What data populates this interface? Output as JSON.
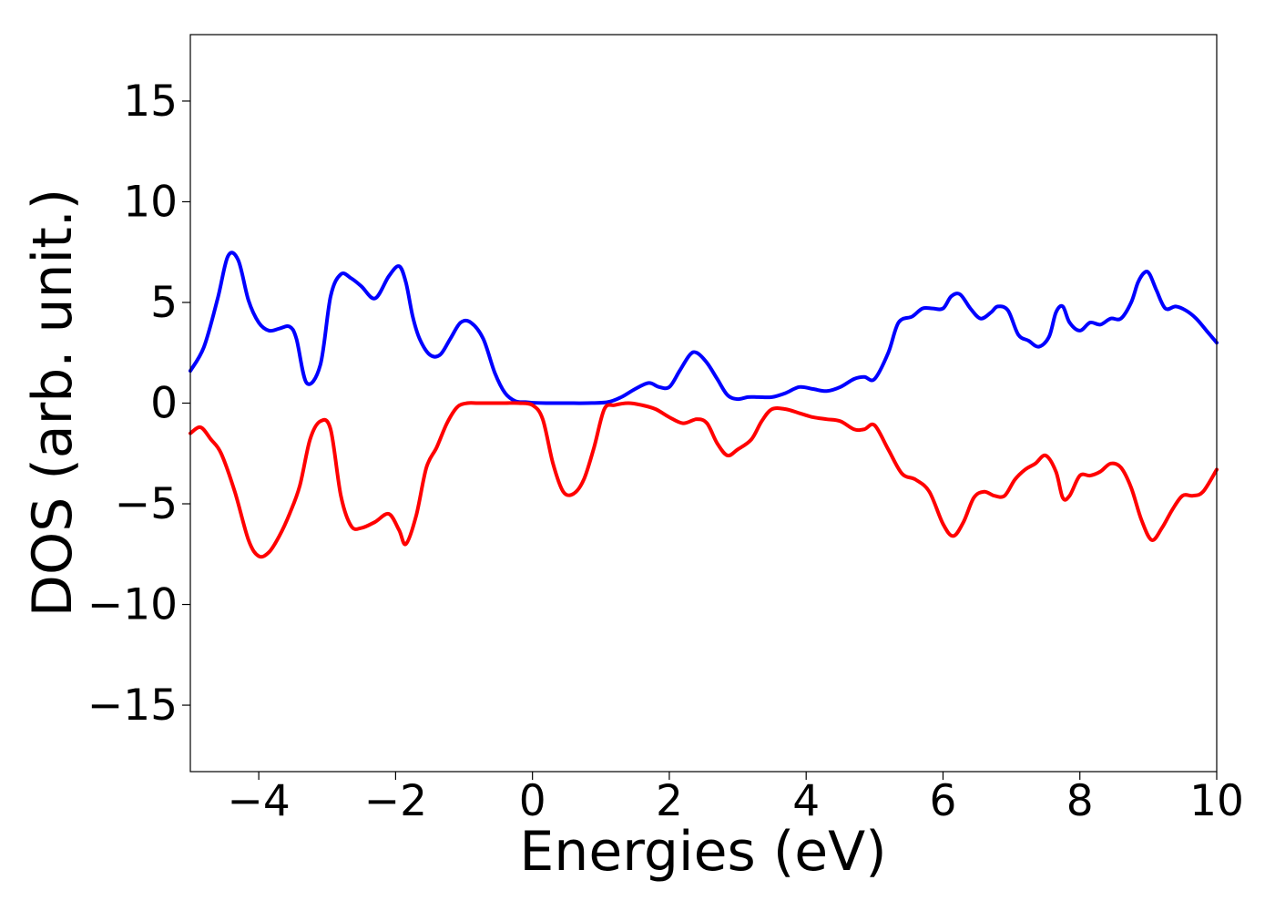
{
  "chart_data": {
    "type": "line",
    "title": "",
    "xlabel": "Energies (eV)",
    "ylabel": "DOS (arb. unit.)",
    "xlim": [
      -5,
      10
    ],
    "ylim": [
      -18.3,
      18.3
    ],
    "xticks": [
      -4,
      -2,
      0,
      2,
      4,
      6,
      8,
      10
    ],
    "xtick_labels": [
      "−4",
      "−2",
      "0",
      "2",
      "4",
      "6",
      "8",
      "10"
    ],
    "yticks": [
      15,
      10,
      5,
      0,
      -5,
      -10,
      -15
    ],
    "ytick_labels": [
      "15",
      "10",
      "5",
      "0",
      "−5",
      "−10",
      "−15"
    ],
    "grid": false,
    "series": [
      {
        "color": "#0000ff",
        "x": [
          -5.0,
          -4.8,
          -4.6,
          -4.45,
          -4.3,
          -4.15,
          -4.0,
          -3.85,
          -3.7,
          -3.55,
          -3.45,
          -3.3,
          -3.1,
          -2.95,
          -2.8,
          -2.65,
          -2.5,
          -2.3,
          -2.1,
          -1.95,
          -1.85,
          -1.75,
          -1.65,
          -1.5,
          -1.35,
          -1.2,
          -1.05,
          -0.9,
          -0.72,
          -0.55,
          -0.4,
          -0.25,
          -0.1,
          0.0,
          0.2,
          0.5,
          0.8,
          1.1,
          1.3,
          1.5,
          1.7,
          1.85,
          2.0,
          2.15,
          2.3,
          2.4,
          2.55,
          2.7,
          2.85,
          3.0,
          3.15,
          3.3,
          3.5,
          3.7,
          3.9,
          4.1,
          4.3,
          4.5,
          4.7,
          4.85,
          5.0,
          5.2,
          5.35,
          5.55,
          5.7,
          5.85,
          6.0,
          6.12,
          6.25,
          6.4,
          6.55,
          6.7,
          6.8,
          6.95,
          7.1,
          7.25,
          7.4,
          7.55,
          7.65,
          7.75,
          7.85,
          8.0,
          8.15,
          8.3,
          8.45,
          8.6,
          8.75,
          8.85,
          8.95,
          9.02,
          9.12,
          9.25,
          9.4,
          9.55,
          9.7,
          9.85,
          10.0
        ],
        "y": [
          1.6,
          2.8,
          5.2,
          7.3,
          7.1,
          5.1,
          4.0,
          3.6,
          3.7,
          3.8,
          3.2,
          1.0,
          1.9,
          5.3,
          6.4,
          6.2,
          5.8,
          5.2,
          6.3,
          6.8,
          6.0,
          4.3,
          3.2,
          2.4,
          2.4,
          3.2,
          4.0,
          4.0,
          3.2,
          1.5,
          0.5,
          0.1,
          0.05,
          0.02,
          0.0,
          0.0,
          0.0,
          0.05,
          0.3,
          0.7,
          1.0,
          0.8,
          0.8,
          1.6,
          2.4,
          2.5,
          2.0,
          1.2,
          0.4,
          0.2,
          0.3,
          0.3,
          0.3,
          0.5,
          0.8,
          0.7,
          0.6,
          0.8,
          1.2,
          1.3,
          1.2,
          2.5,
          4.0,
          4.3,
          4.7,
          4.7,
          4.7,
          5.3,
          5.4,
          4.7,
          4.2,
          4.5,
          4.8,
          4.6,
          3.4,
          3.1,
          2.8,
          3.3,
          4.5,
          4.8,
          4.0,
          3.6,
          4.0,
          3.9,
          4.2,
          4.2,
          5.0,
          6.0,
          6.5,
          6.4,
          5.6,
          4.7,
          4.8,
          4.6,
          4.2,
          3.6,
          3.0
        ]
      },
      {
        "color": "#ff0000",
        "x": [
          -5.0,
          -4.85,
          -4.7,
          -4.55,
          -4.35,
          -4.15,
          -4.0,
          -3.85,
          -3.7,
          -3.55,
          -3.4,
          -3.25,
          -3.1,
          -2.95,
          -2.8,
          -2.65,
          -2.5,
          -2.3,
          -2.1,
          -1.95,
          -1.85,
          -1.7,
          -1.55,
          -1.4,
          -1.25,
          -1.1,
          -0.95,
          -0.8,
          -0.6,
          -0.4,
          -0.2,
          0.0,
          0.15,
          0.3,
          0.45,
          0.6,
          0.75,
          0.9,
          1.05,
          1.2,
          1.4,
          1.6,
          1.8,
          2.0,
          2.2,
          2.4,
          2.55,
          2.7,
          2.85,
          3.0,
          3.2,
          3.35,
          3.5,
          3.7,
          3.9,
          4.1,
          4.3,
          4.5,
          4.7,
          4.85,
          5.0,
          5.2,
          5.4,
          5.6,
          5.8,
          6.0,
          6.15,
          6.3,
          6.45,
          6.6,
          6.75,
          6.9,
          7.05,
          7.2,
          7.35,
          7.5,
          7.65,
          7.75,
          7.85,
          8.0,
          8.15,
          8.3,
          8.45,
          8.6,
          8.75,
          8.9,
          9.05,
          9.2,
          9.35,
          9.5,
          9.65,
          9.8,
          10.0
        ],
        "y": [
          -1.5,
          -1.2,
          -1.8,
          -2.5,
          -4.4,
          -6.8,
          -7.6,
          -7.4,
          -6.6,
          -5.5,
          -4.1,
          -1.8,
          -0.9,
          -1.3,
          -4.6,
          -6.1,
          -6.2,
          -5.9,
          -5.5,
          -6.3,
          -7.0,
          -5.6,
          -3.2,
          -2.2,
          -1.0,
          -0.2,
          0.0,
          0.0,
          0.0,
          0.0,
          0.0,
          -0.1,
          -0.8,
          -3.0,
          -4.4,
          -4.5,
          -3.8,
          -2.2,
          -0.3,
          -0.1,
          0.0,
          -0.1,
          -0.3,
          -0.7,
          -1.0,
          -0.8,
          -1.0,
          -2.0,
          -2.6,
          -2.3,
          -1.8,
          -0.9,
          -0.3,
          -0.3,
          -0.5,
          -0.7,
          -0.8,
          -0.9,
          -1.3,
          -1.3,
          -1.1,
          -2.3,
          -3.5,
          -3.8,
          -4.4,
          -6.0,
          -6.6,
          -5.9,
          -4.7,
          -4.4,
          -4.6,
          -4.6,
          -3.8,
          -3.3,
          -3.0,
          -2.6,
          -3.4,
          -4.7,
          -4.6,
          -3.6,
          -3.6,
          -3.4,
          -3.0,
          -3.2,
          -4.2,
          -5.8,
          -6.8,
          -6.2,
          -5.3,
          -4.6,
          -4.6,
          -4.4,
          -3.3
        ]
      }
    ]
  }
}
